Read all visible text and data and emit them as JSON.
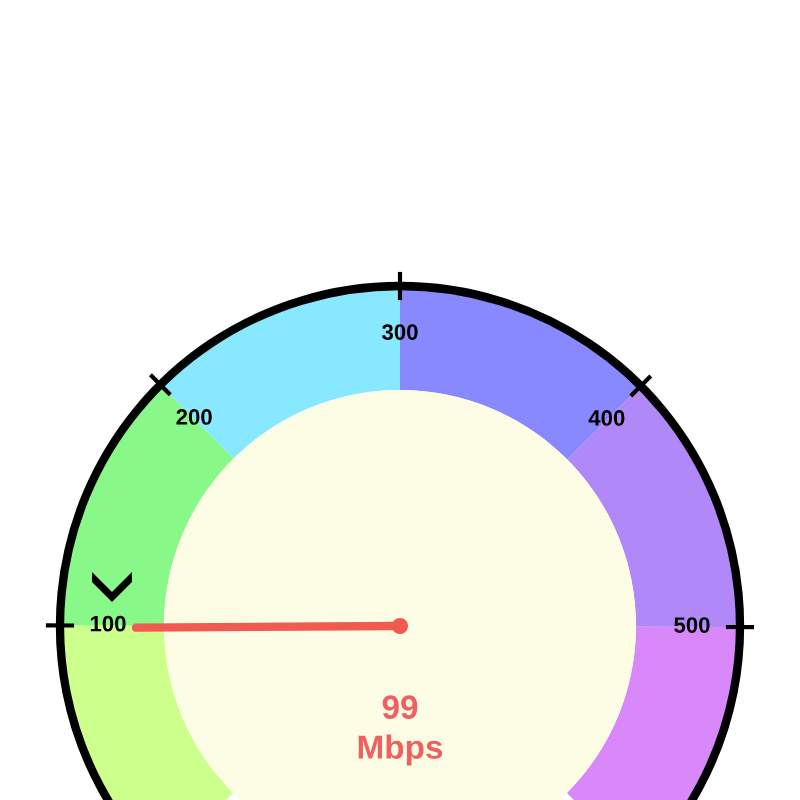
{
  "chart_data": {
    "type": "donut",
    "categories": [
      null,
      null,
      null,
      null,
      null,
      null
    ],
    "values": [
      16.7,
      16.7,
      16.6,
      16.7,
      16.7,
      16.6
    ],
    "colors": [
      "#ccff8c",
      "#88f888",
      "#88e8ff",
      "#8888ff",
      "#b088f8",
      "#d888f8"
    ],
    "needle": null,
    "annotations": [
      "100",
      "200",
      "300",
      "400",
      "500",
      "99",
      "Mbps"
    ]
  }
}
